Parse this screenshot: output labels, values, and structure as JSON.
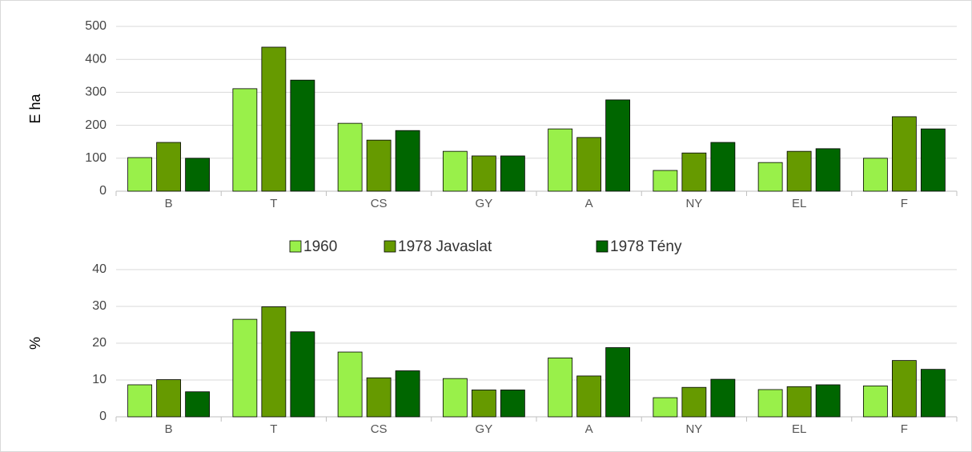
{
  "chart_data": [
    {
      "type": "bar",
      "ylabel": "E ha",
      "categories": [
        "B",
        "T",
        "CS",
        "GY",
        "A",
        "NY",
        "EL",
        "F"
      ],
      "series": [
        {
          "name": "1960",
          "color": "#99f04a",
          "values": [
            102,
            311,
            206,
            121,
            189,
            63,
            87,
            100
          ]
        },
        {
          "name": "1978 Javaslat",
          "color": "#669a00",
          "values": [
            148,
            437,
            155,
            107,
            163,
            116,
            121,
            226
          ]
        },
        {
          "name": "1978 Tény",
          "color": "#006600",
          "values": [
            100,
            337,
            184,
            107,
            277,
            148,
            129,
            189
          ]
        }
      ],
      "ylim": [
        0,
        500
      ],
      "yticks": [
        0,
        100,
        200,
        300,
        400,
        500
      ],
      "grid": true,
      "legend": "bottom"
    },
    {
      "type": "bar",
      "ylabel": "%",
      "categories": [
        "B",
        "T",
        "CS",
        "GY",
        "A",
        "NY",
        "EL",
        "F"
      ],
      "series": [
        {
          "color": "#99f04a",
          "values": [
            8.7,
            26.5,
            17.6,
            10.4,
            16.0,
            5.2,
            7.4,
            8.4
          ]
        },
        {
          "color": "#669a00",
          "values": [
            10.1,
            29.9,
            10.6,
            7.3,
            11.1,
            8.0,
            8.2,
            15.3
          ]
        },
        {
          "color": "#006600",
          "values": [
            6.8,
            23.1,
            12.5,
            7.3,
            18.8,
            10.2,
            8.7,
            12.9
          ]
        }
      ],
      "ylim": [
        0,
        40
      ],
      "yticks": [
        0,
        10,
        20,
        30,
        40
      ],
      "grid": true
    }
  ]
}
